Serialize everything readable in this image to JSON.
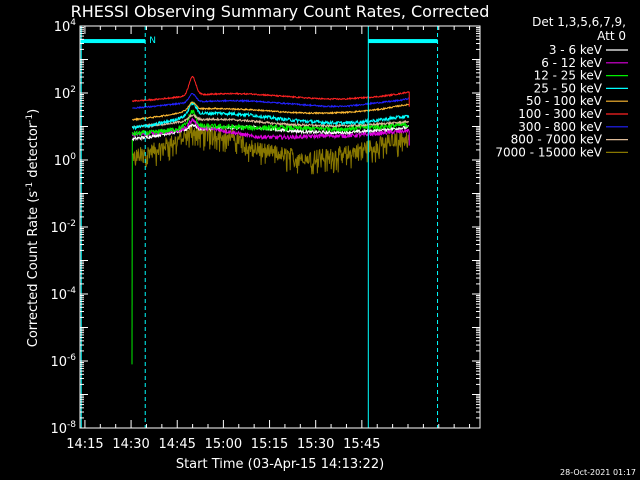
{
  "chart_data": {
    "type": "line",
    "title": "RHESSI Observing Summary Count Rates, Corrected",
    "xlabel": "Start Time (03-Apr-15 14:13:22)",
    "ylabel_main": "Corrected Count Rate (s",
    "ylabel_sup1": "-1",
    "ylabel_mid": " detector",
    "ylabel_sup2": "-1",
    "ylabel_end": ")",
    "yscale": "log",
    "ylim_exp": [
      -8,
      4
    ],
    "xlim_min": [
      0,
      130
    ],
    "x_ticks": [
      {
        "min": 1.6,
        "label": "14:15"
      },
      {
        "min": 16.6,
        "label": "14:30"
      },
      {
        "min": 31.6,
        "label": "14:45"
      },
      {
        "min": 46.6,
        "label": "15:00"
      },
      {
        "min": 61.6,
        "label": "15:15"
      },
      {
        "min": 76.6,
        "label": "15:30"
      },
      {
        "min": 91.6,
        "label": "15:45"
      }
    ],
    "y_ticks": [
      {
        "exp": 4,
        "label": "10",
        "sup": "4"
      },
      {
        "exp": 2,
        "label": "10",
        "sup": "2"
      },
      {
        "exp": 0,
        "label": "10",
        "sup": "0"
      },
      {
        "exp": -2,
        "label": "10",
        "sup": "-2"
      },
      {
        "exp": -4,
        "label": "10",
        "sup": "-4"
      },
      {
        "exp": -6,
        "label": "10",
        "sup": "-6"
      },
      {
        "exp": -8,
        "label": "10",
        "sup": "-8"
      }
    ],
    "legend_placement": "right",
    "legend_header": [
      "Det 1,3,5,6,7,9,",
      "Att 0"
    ],
    "series": [
      {
        "name": "3 - 6 keV",
        "color": "#ffffff",
        "start": 17.0,
        "end": 107.0,
        "points": [
          [
            17,
            0.62
          ],
          [
            24,
            0.72
          ],
          [
            30,
            0.82
          ],
          [
            34,
            0.88
          ],
          [
            38,
            0.92
          ],
          [
            44,
            0.95
          ],
          [
            50,
            0.97
          ],
          [
            56,
            0.98
          ],
          [
            62,
            0.92
          ],
          [
            68,
            0.88
          ],
          [
            74,
            0.84
          ],
          [
            80,
            0.82
          ],
          [
            86,
            0.82
          ],
          [
            92,
            0.85
          ],
          [
            98,
            0.9
          ],
          [
            104,
            0.95
          ],
          [
            107,
            0.98
          ]
        ],
        "spike": 0.15,
        "noise": 0.05
      },
      {
        "name": "6 - 12 keV",
        "color": "#dd00dd",
        "start": 17.0,
        "end": 107.0,
        "points": [
          [
            17,
            0.75
          ],
          [
            24,
            0.8
          ],
          [
            30,
            0.86
          ],
          [
            34,
            0.92
          ],
          [
            38,
            0.96
          ],
          [
            44,
            0.92
          ],
          [
            50,
            0.82
          ],
          [
            56,
            0.7
          ],
          [
            62,
            0.68
          ],
          [
            68,
            0.68
          ],
          [
            74,
            0.7
          ],
          [
            80,
            0.72
          ],
          [
            86,
            0.72
          ],
          [
            92,
            0.75
          ],
          [
            98,
            0.8
          ],
          [
            104,
            0.85
          ],
          [
            107,
            0.88
          ]
        ],
        "spike": 0.25,
        "noise": 0.06
      },
      {
        "name": "12 - 25 keV",
        "color": "#00ee00",
        "start": 17.0,
        "end": 107.0,
        "points": [
          [
            17,
            0.78
          ],
          [
            24,
            0.82
          ],
          [
            30,
            0.9
          ],
          [
            34,
            1.0
          ],
          [
            38,
            1.0
          ],
          [
            44,
            1.0
          ],
          [
            50,
            0.98
          ],
          [
            56,
            0.96
          ],
          [
            62,
            0.96
          ],
          [
            68,
            0.96
          ],
          [
            74,
            0.94
          ],
          [
            80,
            0.94
          ],
          [
            86,
            0.92
          ],
          [
            92,
            0.98
          ],
          [
            98,
            1.0
          ],
          [
            104,
            1.04
          ],
          [
            107,
            1.05
          ]
        ],
        "spike": 0.45,
        "noise": 0.08
      },
      {
        "name": "25 - 50 keV",
        "color": "#00ffff",
        "start": 17.0,
        "end": 107.0,
        "points": [
          [
            17,
            0.96
          ],
          [
            24,
            1.05
          ],
          [
            30,
            1.18
          ],
          [
            34,
            1.3
          ],
          [
            38,
            1.38
          ],
          [
            44,
            1.4
          ],
          [
            50,
            1.38
          ],
          [
            56,
            1.34
          ],
          [
            62,
            1.26
          ],
          [
            68,
            1.2
          ],
          [
            74,
            1.15
          ],
          [
            80,
            1.12
          ],
          [
            86,
            1.1
          ],
          [
            92,
            1.14
          ],
          [
            98,
            1.2
          ],
          [
            104,
            1.28
          ],
          [
            107,
            1.3
          ]
        ],
        "spike": 0.35,
        "noise": 0.05
      },
      {
        "name": "50 - 100 keV",
        "color": "#ffbb33",
        "start": 17.0,
        "end": 107.0,
        "points": [
          [
            17,
            1.2
          ],
          [
            24,
            1.28
          ],
          [
            30,
            1.36
          ],
          [
            34,
            1.46
          ],
          [
            38,
            1.52
          ],
          [
            44,
            1.54
          ],
          [
            50,
            1.52
          ],
          [
            56,
            1.5
          ],
          [
            62,
            1.46
          ],
          [
            68,
            1.42
          ],
          [
            74,
            1.4
          ],
          [
            80,
            1.4
          ],
          [
            86,
            1.42
          ],
          [
            92,
            1.46
          ],
          [
            98,
            1.52
          ],
          [
            104,
            1.62
          ],
          [
            107,
            1.66
          ]
        ],
        "spike": 0.22,
        "noise": 0.02
      },
      {
        "name": "100 - 300 keV",
        "color": "#ff2222",
        "start": 17.0,
        "end": 107.0,
        "points": [
          [
            17,
            1.76
          ],
          [
            24,
            1.8
          ],
          [
            30,
            1.86
          ],
          [
            34,
            1.9
          ],
          [
            38,
            1.95
          ],
          [
            44,
            1.97
          ],
          [
            50,
            1.98
          ],
          [
            56,
            1.97
          ],
          [
            62,
            1.93
          ],
          [
            68,
            1.89
          ],
          [
            74,
            1.85
          ],
          [
            80,
            1.82
          ],
          [
            86,
            1.82
          ],
          [
            92,
            1.86
          ],
          [
            98,
            1.9
          ],
          [
            104,
            1.98
          ],
          [
            107,
            2.04
          ]
        ],
        "spike": 0.55,
        "noise": 0.02
      },
      {
        "name": "300 - 800 keV",
        "color": "#2222ff",
        "start": 17.0,
        "end": 107.0,
        "points": [
          [
            17,
            1.55
          ],
          [
            24,
            1.6
          ],
          [
            30,
            1.66
          ],
          [
            34,
            1.7
          ],
          [
            38,
            1.74
          ],
          [
            44,
            1.76
          ],
          [
            50,
            1.77
          ],
          [
            56,
            1.76
          ],
          [
            62,
            1.72
          ],
          [
            68,
            1.68
          ],
          [
            74,
            1.64
          ],
          [
            80,
            1.6
          ],
          [
            86,
            1.6
          ],
          [
            92,
            1.66
          ],
          [
            98,
            1.72
          ],
          [
            104,
            1.78
          ],
          [
            107,
            1.84
          ]
        ],
        "spike": 0.25,
        "noise": 0.02
      },
      {
        "name": "800 - 7000 keV",
        "color": "#ddbb99",
        "start": 17.0,
        "end": 107.0,
        "points": [
          [
            17,
            0.98
          ],
          [
            24,
            1.04
          ],
          [
            30,
            1.1
          ],
          [
            34,
            1.16
          ],
          [
            38,
            1.2
          ],
          [
            44,
            1.22
          ],
          [
            50,
            1.2
          ],
          [
            56,
            1.16
          ],
          [
            62,
            1.1
          ],
          [
            68,
            1.06
          ],
          [
            74,
            1.04
          ],
          [
            80,
            1.02
          ],
          [
            86,
            1.02
          ],
          [
            92,
            1.04
          ],
          [
            98,
            1.08
          ],
          [
            104,
            1.12
          ],
          [
            107,
            1.15
          ]
        ],
        "spike": 0.15,
        "noise": 0.03
      },
      {
        "name": "7000 - 15000 keV",
        "color": "#887700",
        "start": 17.0,
        "end": 107.0,
        "points": [
          [
            17,
            0.1
          ],
          [
            24,
            0.3
          ],
          [
            30,
            0.55
          ],
          [
            34,
            0.7
          ],
          [
            38,
            0.8
          ],
          [
            44,
            0.82
          ],
          [
            50,
            0.7
          ],
          [
            56,
            0.4
          ],
          [
            62,
            0.25
          ],
          [
            68,
            0.15
          ],
          [
            74,
            0.12
          ],
          [
            80,
            0.12
          ],
          [
            86,
            0.2
          ],
          [
            92,
            0.35
          ],
          [
            98,
            0.5
          ],
          [
            104,
            0.65
          ],
          [
            107,
            0.7
          ]
        ],
        "spike": 0.15,
        "noise": 0.22
      }
    ],
    "green_early_drop": [
      [
        16.9,
        -6.1
      ],
      [
        17.0,
        0.6
      ]
    ],
    "night_bars": [
      {
        "from": 0,
        "to": 21.2
      },
      {
        "from": 93.7,
        "to": 116.2
      }
    ],
    "night_bar_level_exp": 3.55,
    "night_bar_label": "N",
    "night_bar_label_min": 22.5,
    "saa_lines_solid": [
      0.4,
      93.7
    ],
    "saa_lines_dashed": [
      21.2,
      116.2
    ],
    "colors": {
      "accent": "#00ffff",
      "axes": "#ffffff",
      "background": "#000000"
    }
  },
  "footer_date": "28-Oct-2021 01:17"
}
